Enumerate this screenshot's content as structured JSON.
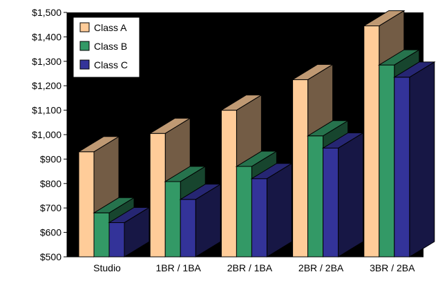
{
  "chart_data": {
    "type": "bar",
    "style": "3d-clustered",
    "categories": [
      "Studio",
      "1BR / 1BA",
      "2BR / 1BA",
      "2BR / 2BA",
      "3BR / 2BA"
    ],
    "series": [
      {
        "name": "Class A",
        "values": [
          930,
          1005,
          1100,
          1225,
          1445
        ],
        "color": "#FFCC99"
      },
      {
        "name": "Class B",
        "values": [
          680,
          808,
          870,
          995,
          1285
        ],
        "color": "#339966"
      },
      {
        "name": "Class C",
        "values": [
          640,
          735,
          820,
          945,
          1235
        ],
        "color": "#333399"
      }
    ],
    "ylim": [
      500,
      1500
    ],
    "yticks": [
      "$500",
      "$600",
      "$700",
      "$800",
      "$900",
      "$1,000",
      "$1,100",
      "$1,200",
      "$1,300",
      "$1,400",
      "$1,500"
    ],
    "plot_background": "#000000",
    "grid": false,
    "legend_position": "top-left"
  }
}
